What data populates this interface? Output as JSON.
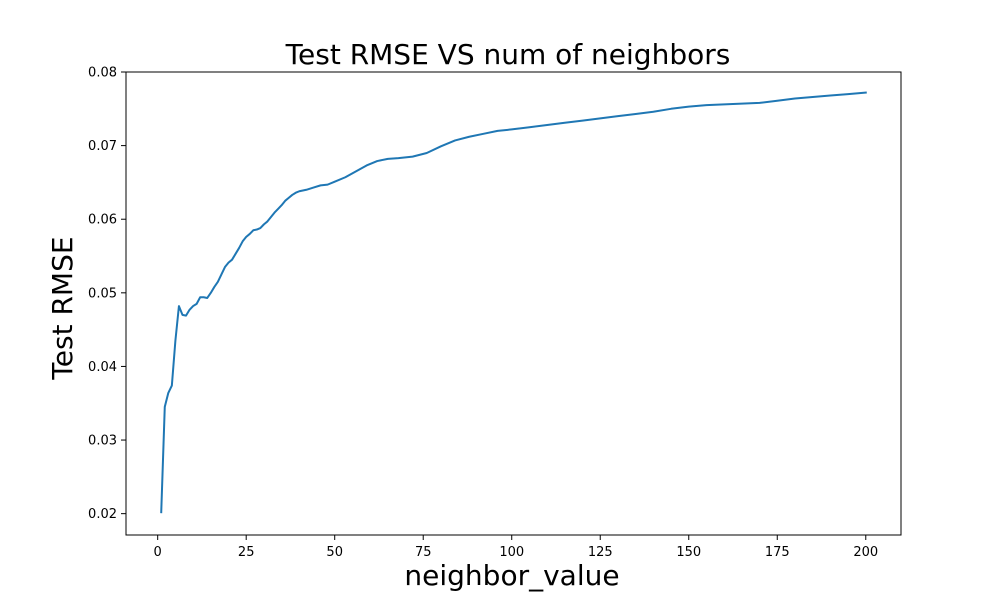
{
  "chart_data": {
    "type": "line",
    "title": "Test RMSE VS num of neighbors",
    "xlabel": "neighbor_value",
    "ylabel": "Test RMSE",
    "xlim": [
      -8.95,
      209.95
    ],
    "ylim": [
      0.0171,
      0.08
    ],
    "xticks": [
      0,
      25,
      50,
      75,
      100,
      125,
      150,
      175,
      200
    ],
    "xtick_labels": [
      "0",
      "25",
      "50",
      "75",
      "100",
      "125",
      "150",
      "175",
      "200"
    ],
    "yticks": [
      0.02,
      0.03,
      0.04,
      0.05,
      0.06,
      0.07,
      0.08
    ],
    "ytick_labels": [
      "0.02",
      "0.03",
      "0.04",
      "0.05",
      "0.06",
      "0.07",
      "0.08"
    ],
    "grid": false,
    "legend": false,
    "colors": {
      "line": "#1f77b4"
    },
    "series": [
      {
        "x": [
          1,
          2,
          3,
          4,
          5,
          6,
          7,
          8,
          9,
          10,
          11,
          12,
          13,
          14,
          15,
          16,
          17,
          18,
          19,
          20,
          21,
          22,
          23,
          24,
          25,
          26,
          27,
          28,
          29,
          30,
          31,
          32,
          33,
          34,
          35,
          36,
          37,
          38,
          39,
          40,
          42,
          44,
          46,
          48,
          50,
          53,
          56,
          59,
          62,
          65,
          68,
          72,
          76,
          80,
          84,
          88,
          92,
          96,
          100,
          105,
          110,
          115,
          120,
          125,
          130,
          135,
          140,
          145,
          150,
          155,
          160,
          165,
          170,
          175,
          180,
          185,
          190,
          195,
          200
        ],
        "y": [
          0.0202,
          0.0345,
          0.0364,
          0.0374,
          0.0435,
          0.0482,
          0.047,
          0.0469,
          0.0477,
          0.0482,
          0.0485,
          0.0494,
          0.0494,
          0.0493,
          0.05,
          0.0508,
          0.0515,
          0.0525,
          0.0535,
          0.0541,
          0.0545,
          0.0553,
          0.0561,
          0.057,
          0.0576,
          0.058,
          0.0585,
          0.0586,
          0.0588,
          0.0593,
          0.0597,
          0.0603,
          0.0609,
          0.0614,
          0.0619,
          0.0625,
          0.0629,
          0.0633,
          0.0636,
          0.0638,
          0.064,
          0.0643,
          0.0646,
          0.0647,
          0.0651,
          0.0657,
          0.0665,
          0.0673,
          0.0679,
          0.0682,
          0.0683,
          0.0685,
          0.069,
          0.0699,
          0.0707,
          0.0712,
          0.0716,
          0.072,
          0.0722,
          0.0725,
          0.0728,
          0.0731,
          0.0734,
          0.0737,
          0.074,
          0.0743,
          0.0746,
          0.075,
          0.0753,
          0.0755,
          0.0756,
          0.0757,
          0.0758,
          0.0761,
          0.0764,
          0.0766,
          0.0768,
          0.077,
          0.0772
        ]
      }
    ]
  }
}
